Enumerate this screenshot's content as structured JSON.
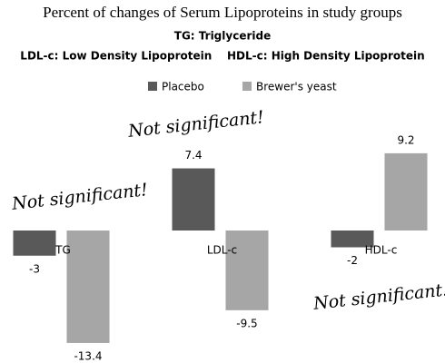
{
  "chart_data": {
    "type": "bar",
    "title": "Percent of changes of Serum Lipoproteins in study groups",
    "subtitle": [
      "TG: Triglyceride",
      "LDL-c: Low Density Lipoprotein    HDL-c: High Density Lipoprotein"
    ],
    "categories": [
      "TG",
      "LDL-c",
      "HDL-c"
    ],
    "series": [
      {
        "name": "Placebo",
        "color": "#595959",
        "values": [
          -3,
          7.4,
          -2
        ]
      },
      {
        "name": "Brewer's yeast",
        "color": "#a6a6a6",
        "values": [
          -13.4,
          -9.5,
          9.2
        ]
      }
    ],
    "ylim": [
      -15,
      11
    ],
    "annotations": [
      "Not significant!",
      "Not significant!",
      "Not significant!"
    ]
  }
}
